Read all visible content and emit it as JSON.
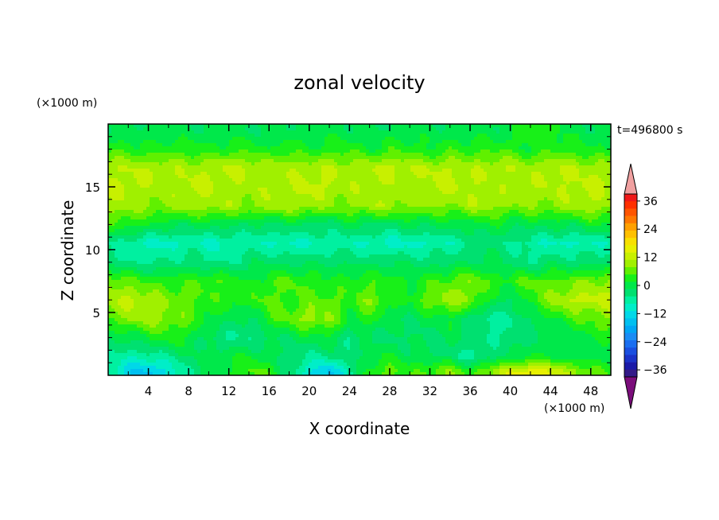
{
  "chart_data": {
    "type": "heatmap",
    "title": "zonal velocity",
    "xlabel": "X coordinate",
    "ylabel": "Z coordinate",
    "x_unit": "(×1000 m)",
    "y_unit": "(×1000 m)",
    "time_label": "t=496800 s",
    "xlim": [
      0,
      50
    ],
    "ylim": [
      0,
      20
    ],
    "x_ticks": [
      "4",
      "8",
      "12",
      "16",
      "20",
      "24",
      "28",
      "32",
      "36",
      "40",
      "44",
      "48"
    ],
    "y_ticks": [
      "5",
      "10",
      "15"
    ],
    "colorbar": {
      "levels": [
        -42,
        -39,
        -36,
        -33,
        -30,
        -27,
        -24,
        -21,
        -18,
        -15,
        -12,
        -9,
        -6,
        -3,
        0,
        3,
        6,
        9,
        12,
        15,
        18,
        21,
        24,
        27,
        30,
        33,
        36,
        39,
        42
      ],
      "colors": [
        "#7b0d7b",
        "#331a88",
        "#1a1aa8",
        "#1a33c8",
        "#1a4fe0",
        "#1a6ef0",
        "#1a8cf5",
        "#00a6f5",
        "#00c0f0",
        "#00d8e8",
        "#00eec8",
        "#00f0a0",
        "#00e070",
        "#00e84a",
        "#18f018",
        "#60f000",
        "#a0f000",
        "#c8f000",
        "#e8f000",
        "#f8e000",
        "#ffc000",
        "#ffa000",
        "#ff7800",
        "#ff5500",
        "#ff3000",
        "#f01818",
        "#f0a0a0"
      ],
      "tick_labels": [
        "36",
        "24",
        "12",
        "0",
        "-12",
        "-24",
        "-36"
      ],
      "tick_values": [
        36,
        24,
        12,
        0,
        -12,
        -24,
        -36
      ]
    },
    "field": {
      "description_rows_bottom_to_top": "approximate zonal velocity (m/s) on a coarse grid, x = 0..50 km, z = 0..20 km",
      "x": [
        0,
        2,
        4,
        6,
        8,
        10,
        12,
        14,
        16,
        18,
        20,
        22,
        24,
        26,
        28,
        30,
        32,
        34,
        36,
        38,
        40,
        42,
        44,
        46,
        48,
        50
      ],
      "z": [
        0.3,
        1.5,
        3,
        4.5,
        6,
        7.5,
        9,
        10.5,
        12,
        13.5,
        15,
        16.5,
        18,
        19.5
      ],
      "u": [
        [
          -8,
          -14,
          -16,
          -12,
          -6,
          -2,
          0,
          4,
          2,
          -4,
          -12,
          -16,
          -8,
          2,
          4,
          2,
          4,
          6,
          2,
          6,
          12,
          14,
          12,
          8,
          4,
          2
        ],
        [
          -6,
          -8,
          -8,
          -6,
          -3,
          -2,
          -1,
          0,
          -2,
          -4,
          -6,
          -6,
          -4,
          -2,
          0,
          -2,
          -3,
          -4,
          -8,
          -4,
          -2,
          0,
          0,
          -2,
          -2,
          -2
        ],
        [
          -3,
          -2,
          0,
          2,
          0,
          -4,
          -6,
          -6,
          -4,
          -2,
          -2,
          0,
          -6,
          -3,
          -4,
          -3,
          -4,
          -2,
          -4,
          -6,
          -6,
          -4,
          -2,
          -2,
          0,
          0
        ],
        [
          4,
          6,
          8,
          6,
          4,
          0,
          -2,
          -4,
          2,
          4,
          8,
          6,
          0,
          2,
          -2,
          -3,
          -2,
          0,
          -4,
          -8,
          -6,
          -3,
          0,
          2,
          4,
          6
        ],
        [
          8,
          10,
          8,
          6,
          4,
          2,
          2,
          2,
          4,
          2,
          4,
          4,
          2,
          6,
          2,
          0,
          6,
          8,
          6,
          0,
          -4,
          2,
          6,
          10,
          10,
          10
        ],
        [
          6,
          4,
          2,
          2,
          2,
          4,
          2,
          0,
          2,
          4,
          2,
          0,
          2,
          2,
          2,
          0,
          2,
          4,
          6,
          2,
          2,
          4,
          4,
          4,
          6,
          6
        ],
        [
          -4,
          -6,
          -6,
          -6,
          -4,
          -6,
          -6,
          -4,
          -3,
          -4,
          -4,
          -3,
          -4,
          -4,
          -3,
          -4,
          -4,
          -4,
          -3,
          -2,
          -4,
          -6,
          -4,
          -4,
          -4,
          -4
        ],
        [
          -6,
          -8,
          -10,
          -10,
          -8,
          -10,
          -9,
          -8,
          -9,
          -10,
          -9,
          -8,
          -8,
          -9,
          -10,
          -10,
          -9,
          -8,
          -6,
          -4,
          -6,
          -8,
          -9,
          -10,
          -9,
          -8
        ],
        [
          2,
          2,
          0,
          -2,
          -2,
          -2,
          -2,
          -3,
          -4,
          -2,
          -4,
          -4,
          -2,
          -3,
          -4,
          -2,
          -2,
          -2,
          -2,
          0,
          -2,
          -2,
          -2,
          -2,
          0,
          0
        ],
        [
          8,
          8,
          6,
          6,
          8,
          8,
          8,
          6,
          8,
          8,
          8,
          6,
          6,
          8,
          8,
          6,
          6,
          6,
          8,
          8,
          6,
          6,
          6,
          8,
          8,
          8
        ],
        [
          9,
          10,
          8,
          8,
          10,
          9,
          8,
          8,
          8,
          8,
          10,
          9,
          8,
          8,
          8,
          8,
          9,
          10,
          9,
          8,
          8,
          8,
          9,
          9,
          10,
          9
        ],
        [
          8,
          9,
          9,
          8,
          8,
          9,
          10,
          9,
          8,
          9,
          8,
          9,
          8,
          9,
          10,
          9,
          9,
          9,
          8,
          9,
          9,
          8,
          9,
          9,
          8,
          8
        ],
        [
          2,
          2,
          0,
          2,
          2,
          0,
          2,
          2,
          0,
          2,
          0,
          2,
          2,
          0,
          2,
          2,
          0,
          2,
          2,
          2,
          2,
          0,
          2,
          2,
          0,
          0
        ],
        [
          -2,
          -3,
          -2,
          -2,
          -3,
          -2,
          -2,
          -3,
          -2,
          -2,
          -3,
          -2,
          -2,
          -2,
          -3,
          -2,
          -2,
          -2,
          -2,
          -2,
          -2,
          2,
          2,
          -2,
          -2,
          -2
        ]
      ]
    }
  }
}
